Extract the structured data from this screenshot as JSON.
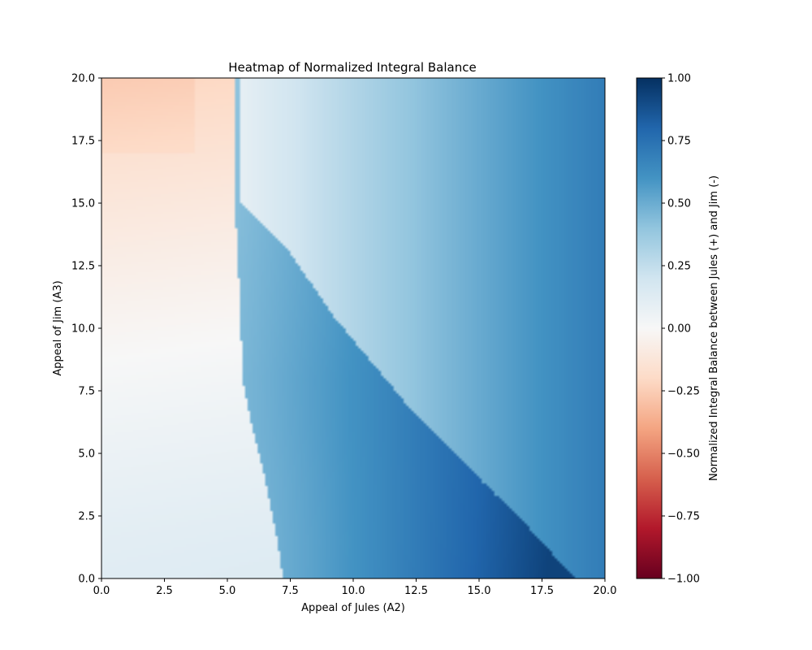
{
  "chart_data": {
    "type": "heatmap",
    "title": "Heatmap of Normalized Integral Balance",
    "xlabel": "Appeal of Jules (A2)",
    "ylabel": "Appeal of Jim (A3)",
    "xlim": [
      0,
      20
    ],
    "ylim": [
      0,
      20
    ],
    "x_ticks": [
      "0.0",
      "2.5",
      "5.0",
      "7.5",
      "10.0",
      "12.5",
      "15.0",
      "17.5",
      "20.0"
    ],
    "y_ticks": [
      "0.0",
      "2.5",
      "5.0",
      "7.5",
      "10.0",
      "12.5",
      "15.0",
      "17.5",
      "20.0"
    ],
    "colormap": "RdBu",
    "colorbar": {
      "label": "Normalized Integral Balance between Jules (+) and Jim (-)",
      "range": [
        -1,
        1
      ],
      "ticks": [
        "−1.00",
        "−0.75",
        "−0.50",
        "−0.25",
        "0.00",
        "0.25",
        "0.50",
        "0.75",
        "1.00"
      ],
      "colors": [
        "#67001f",
        "#b2182b",
        "#d6604d",
        "#f4a582",
        "#fddbc7",
        "#f7f7f7",
        "#d1e5f0",
        "#92c5de",
        "#4393c3",
        "#2166ac",
        "#053061"
      ]
    },
    "regions": [
      {
        "name": "left region",
        "x": [
          0,
          5.6
        ],
        "y": [
          0,
          20
        ],
        "value_range": [
          -0.22,
          0.12
        ]
      },
      {
        "name": "middle region",
        "x": [
          5.5,
          18.8
        ],
        "y": [
          0,
          20
        ],
        "value_range": [
          0.08,
          0.7
        ]
      },
      {
        "name": "lower-right region",
        "x": [
          7.2,
          18.8
        ],
        "y": [
          0,
          10.5
        ],
        "value_range": [
          0.45,
          0.93
        ]
      }
    ],
    "boundaries": [
      {
        "name": "left boundary",
        "points": [
          [
            5.3,
            20
          ],
          [
            5.3,
            15
          ],
          [
            5.5,
            11
          ],
          [
            5.6,
            8
          ],
          [
            6.0,
            6
          ],
          [
            6.5,
            4
          ],
          [
            7.0,
            1.5
          ],
          [
            7.2,
            0
          ]
        ]
      },
      {
        "name": "diagonal boundary",
        "points": [
          [
            5.5,
            15
          ],
          [
            7.5,
            13
          ],
          [
            9.2,
            10.5
          ],
          [
            12.5,
            6.5
          ],
          [
            15,
            4
          ],
          [
            17,
            2
          ],
          [
            18.8,
            0
          ]
        ]
      }
    ],
    "grid": false
  }
}
